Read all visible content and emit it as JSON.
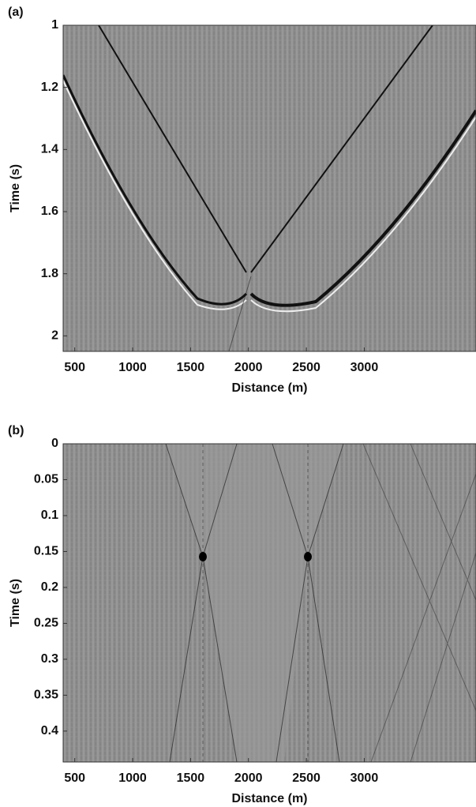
{
  "chart_data": [
    {
      "type": "image",
      "panel_label": "(a)",
      "x_label": "Distance (m)",
      "y_label": "Time (s)",
      "xlim": [
        400,
        3965
      ],
      "xticks": [
        500,
        1000,
        1500,
        2000,
        2500,
        3000
      ],
      "ylim": [
        1,
        2.05
      ],
      "yticks": [
        1,
        1.2,
        1.4,
        1.6,
        1.8,
        2
      ],
      "y_inverted": true
    },
    {
      "type": "image",
      "panel_label": "(b)",
      "x_label": "Distance (m)",
      "y_label": "Time (s)",
      "xlim": [
        400,
        3965
      ],
      "xticks": [
        500,
        1000,
        1500,
        2000,
        2500,
        3000
      ],
      "ylim": [
        0,
        0.443
      ],
      "yticks": [
        0,
        0.05,
        0.1,
        0.15,
        0.2,
        0.25,
        0.3,
        0.35,
        0.4
      ],
      "y_inverted": true
    }
  ]
}
